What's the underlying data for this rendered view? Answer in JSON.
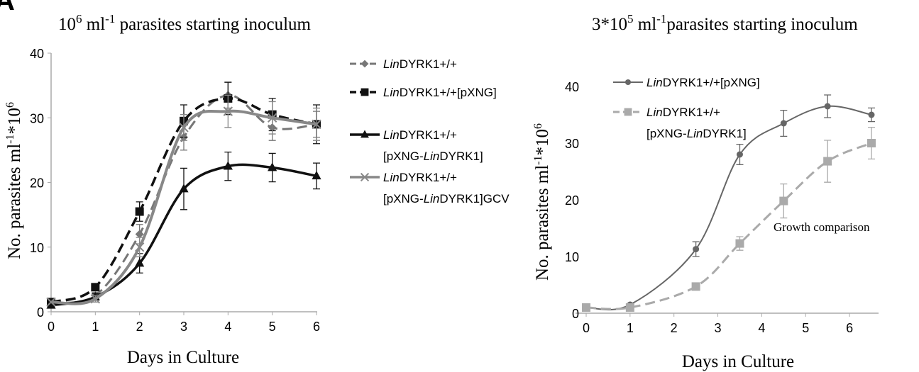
{
  "figure": {
    "panel_letter": "A"
  },
  "chart_data": [
    {
      "type": "line",
      "title": {
        "prefix": "10",
        "sup1": "6",
        "mid": " ml",
        "sup2": "-1",
        "suffix": " parasites starting inoculum"
      },
      "xlabel": "Days in Culture",
      "ylabel": {
        "prefix": "No. parasites ml",
        "sup1": "-1",
        "mid": "*10",
        "sup2": "6"
      },
      "x_ticks": [
        "0",
        "1",
        "2",
        "3",
        "4",
        "5",
        "6"
      ],
      "y_ticks": [
        "0",
        "10",
        "20",
        "30",
        "40"
      ],
      "xlim": [
        0,
        6
      ],
      "ylim": [
        0,
        40
      ],
      "grid": false,
      "legend_position": "right",
      "series": [
        {
          "legend": [
            {
              "italic": "Lin",
              "text": "DYRK1+/+"
            }
          ],
          "x": [
            0,
            1,
            2,
            3,
            4,
            5,
            6
          ],
          "y": [
            1.5,
            2.5,
            12,
            27,
            33.5,
            28.5,
            29
          ],
          "err": [
            0,
            0.5,
            1.5,
            2,
            2,
            2,
            2
          ],
          "color": "#777777",
          "marker": "diamond",
          "dash": "dashed",
          "width": 3
        },
        {
          "legend": [
            {
              "italic": "Lin",
              "text": "DYRK1+/+[pXNG]"
            }
          ],
          "x": [
            0,
            1,
            2,
            3,
            4,
            5,
            6
          ],
          "y": [
            1.5,
            3.8,
            15.5,
            29.5,
            33,
            30.5,
            29
          ],
          "err": [
            0,
            0.5,
            1.5,
            2.5,
            2.5,
            2.5,
            3
          ],
          "color": "#111111",
          "marker": "square",
          "dash": "dashed",
          "width": 3.5
        },
        {
          "legend": [
            {
              "italic": "Lin",
              "text": "DYRK1+/+"
            },
            {
              "text": "[pXNG-",
              "italic": "Lin",
              "text2": "DYRK1]"
            }
          ],
          "x": [
            0,
            1,
            2,
            3,
            4,
            5,
            6
          ],
          "y": [
            1,
            2.3,
            7.5,
            19,
            22.5,
            22.3,
            21
          ],
          "err": [
            0,
            0.5,
            1.5,
            3.2,
            2.2,
            2.2,
            2
          ],
          "color": "#111111",
          "marker": "triangle",
          "dash": "solid",
          "width": 3.5
        },
        {
          "legend": [
            {
              "italic": "Lin",
              "text": "DYRK1+/+"
            },
            {
              "text": "[pXNG-",
              "italic": "Lin",
              "text2": "DYRK1]GCV"
            }
          ],
          "x": [
            0,
            1,
            2,
            3,
            4,
            5,
            6
          ],
          "y": [
            1.5,
            2,
            10,
            28.5,
            31,
            30,
            29
          ],
          "err": [
            0,
            0.5,
            1.5,
            2,
            2.5,
            2.5,
            2.5
          ],
          "color": "#888888",
          "marker": "x",
          "dash": "solid",
          "width": 4
        }
      ]
    },
    {
      "type": "line",
      "title": {
        "prefix": "3*10",
        "sup1": "5",
        "mid": " ml",
        "sup2": "-1",
        "suffix": "parasites starting inoculum"
      },
      "xlabel": "Days in Culture",
      "ylabel": {
        "prefix": "No. parasites ml",
        "sup1": "-1",
        "mid": "*10",
        "sup2": "6"
      },
      "x_ticks": [
        "0",
        "1",
        "2",
        "3",
        "4",
        "5",
        "6"
      ],
      "y_ticks": [
        "0",
        "10",
        "20",
        "30",
        "40"
      ],
      "xlim": [
        0,
        6.5
      ],
      "ylim": [
        0,
        40
      ],
      "grid": false,
      "legend_position": "top-left",
      "annotation": "Growth comparison",
      "series": [
        {
          "legend": [
            {
              "italic": "Lin",
              "text": "DYRK1+/+[pXNG]"
            }
          ],
          "x": [
            0,
            1,
            2.5,
            3.5,
            4.5,
            5.5,
            6.5
          ],
          "y": [
            1,
            1.5,
            11.3,
            28,
            33.5,
            36.5,
            35
          ],
          "err": [
            0,
            0,
            1.3,
            1.8,
            2.3,
            2,
            1.2
          ],
          "color": "#666666",
          "marker": "circle",
          "dash": "solid",
          "width": 2
        },
        {
          "legend": [
            {
              "italic": "Lin",
              "text": "DYRK1+/+"
            },
            {
              "text": "[pXNG-",
              "italic": "Lin",
              "text2": "DYRK1]"
            }
          ],
          "x": [
            0,
            1,
            2.5,
            3.5,
            4.5,
            5.5,
            6.5
          ],
          "y": [
            1,
            1,
            4.7,
            12.3,
            19.8,
            26.8,
            30
          ],
          "err": [
            0,
            0,
            0,
            1.2,
            3,
            3.7,
            2.8
          ],
          "color": "#aaaaaa",
          "marker": "square",
          "dash": "dashed",
          "width": 3
        }
      ]
    }
  ]
}
